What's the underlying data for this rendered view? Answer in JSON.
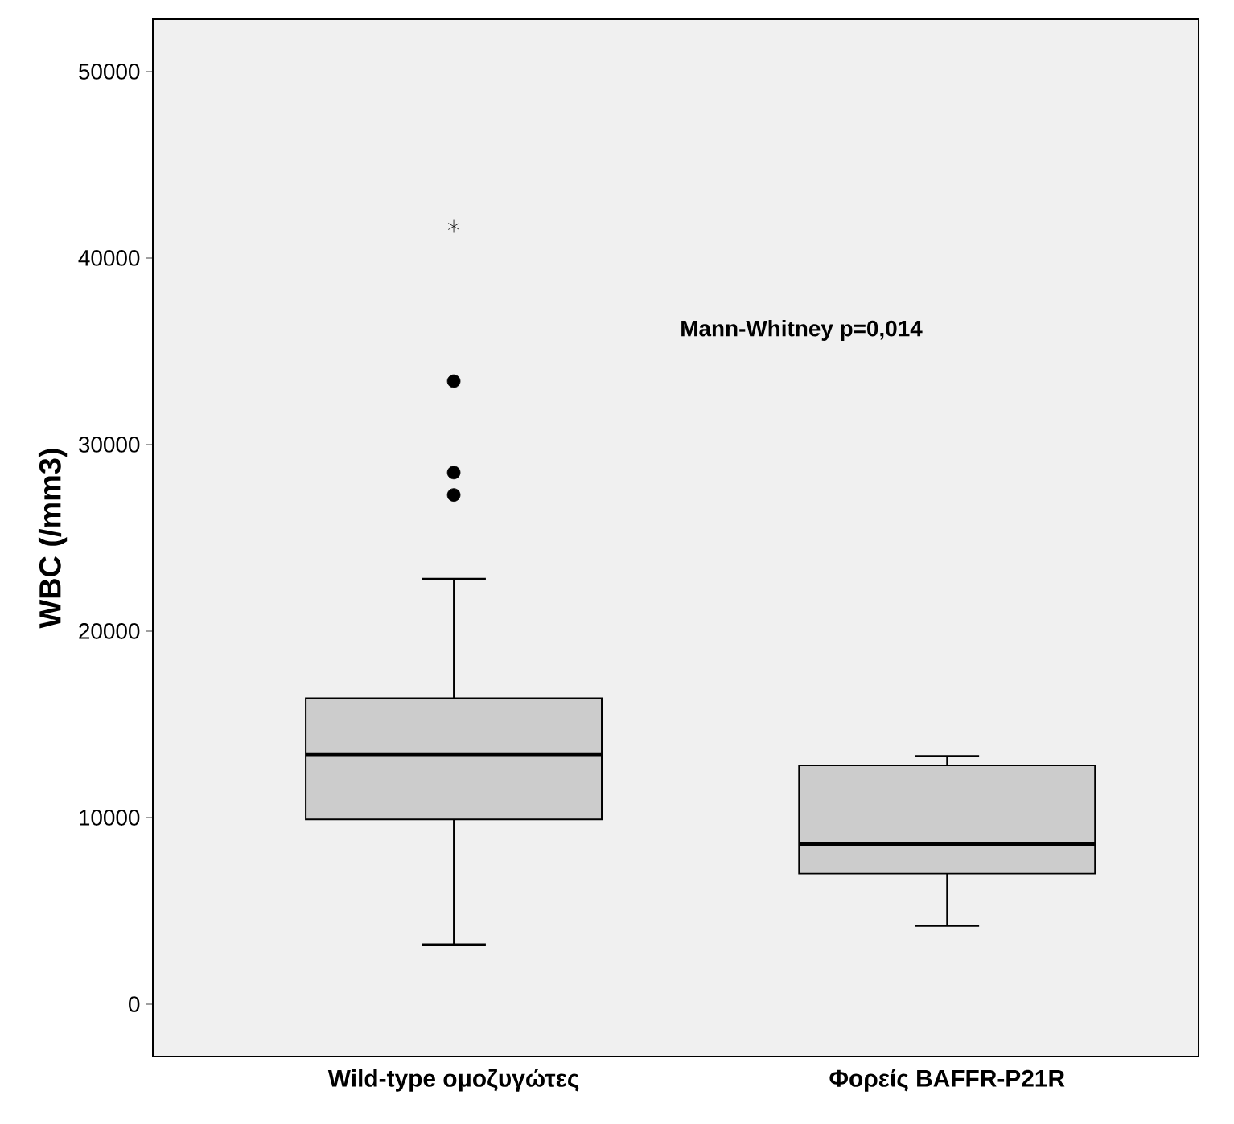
{
  "chart_data": {
    "type": "box",
    "ylabel": "WBC (/mm3)",
    "categories": [
      "Wild-type ομοζυγώτες",
      "Φορείς BAFFR-P21R"
    ],
    "series": [
      {
        "color": "#cccccc",
        "boxes": [
          {
            "low": 3200,
            "q1": 9900,
            "median": 13400,
            "q3": 16400,
            "high": 22800,
            "outliers": [
              27300,
              28500,
              33400,
              41700
            ]
          },
          {
            "low": 4200,
            "q1": 7000,
            "median": 8600,
            "q3": 12800,
            "high": 13300
          }
        ]
      }
    ],
    "ylim": [
      -2800,
      52800
    ],
    "yticks": [
      0,
      10000,
      20000,
      30000,
      40000,
      50000
    ],
    "annotations": [
      "Mann-Whitney p=0,014"
    ]
  }
}
